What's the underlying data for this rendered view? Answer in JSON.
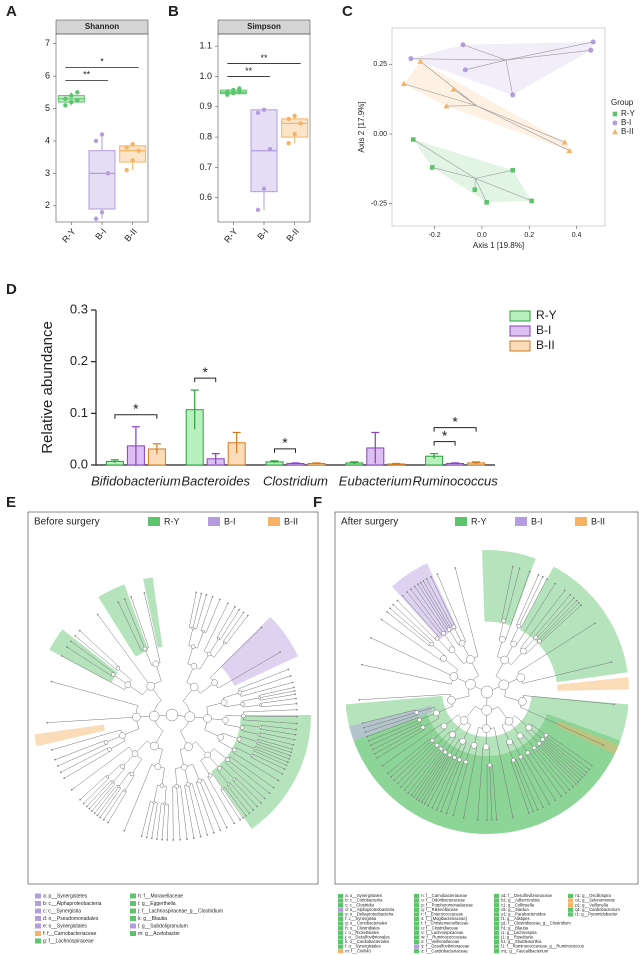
{
  "chart_data": [
    {
      "type": "box",
      "panel": "A",
      "title": "Shannon",
      "categories": [
        "R-Y",
        "B-I",
        "B-II"
      ],
      "colors": [
        "#5cc46b",
        "#b39ddf",
        "#f7b263"
      ],
      "ylim": [
        1.5,
        7.3
      ],
      "yticks": [
        2,
        3,
        4,
        5,
        6,
        7
      ],
      "boxes": [
        {
          "whislo": 5.1,
          "q1": 5.2,
          "med": 5.3,
          "q3": 5.4,
          "whishi": 5.5,
          "points": [
            5.1,
            5.2,
            5.25,
            5.3,
            5.4,
            5.5
          ]
        },
        {
          "whislo": 1.6,
          "q1": 1.9,
          "med": 3.0,
          "q3": 3.7,
          "whishi": 4.2,
          "points": [
            1.6,
            1.8,
            3.0,
            4.0,
            4.2
          ]
        },
        {
          "whislo": 3.1,
          "q1": 3.35,
          "med": 3.7,
          "q3": 3.85,
          "whishi": 3.9,
          "points": [
            3.1,
            3.4,
            3.7,
            3.8,
            3.9
          ]
        }
      ],
      "annotations": [
        {
          "text": "**",
          "from": 0,
          "to": 1
        },
        {
          "text": "*",
          "from": 0,
          "to": 2
        }
      ]
    },
    {
      "type": "box",
      "panel": "B",
      "title": "Simpson",
      "categories": [
        "R-Y",
        "B-I",
        "B-II"
      ],
      "colors": [
        "#5cc46b",
        "#b39ddf",
        "#f7b263"
      ],
      "ylim": [
        0.52,
        1.14
      ],
      "yticks": [
        0.6,
        0.7,
        0.8,
        0.9,
        {
          "value": 1,
          "label": "1.0"
        },
        1.1
      ],
      "boxes": [
        {
          "whislo": 0.94,
          "q1": 0.943,
          "med": 0.948,
          "q3": 0.955,
          "whishi": 0.96,
          "points": [
            0.94,
            0.945,
            0.948,
            0.95,
            0.955,
            0.96
          ]
        },
        {
          "whislo": 0.56,
          "q1": 0.62,
          "med": 0.755,
          "q3": 0.89,
          "whishi": 0.89,
          "points": [
            0.56,
            0.63,
            0.76,
            0.88,
            0.89
          ]
        },
        {
          "whislo": 0.78,
          "q1": 0.8,
          "med": 0.845,
          "q3": 0.86,
          "whishi": 0.87,
          "points": [
            0.78,
            0.81,
            0.845,
            0.86,
            0.87
          ]
        }
      ],
      "annotations": [
        {
          "text": "**",
          "from": 0,
          "to": 1
        },
        {
          "text": "**",
          "from": 0,
          "to": 2
        }
      ]
    },
    {
      "type": "scatter",
      "panel": "C",
      "xlabel": "Axis 1 [19.8%]",
      "ylabel": "Axis 2 [17.9%]",
      "legend_title": "Group",
      "xlim": [
        -0.38,
        0.52
      ],
      "ylim": [
        -0.33,
        0.38
      ],
      "xticks": [
        -0.2,
        {
          "value": 0,
          "label": "0.0"
        },
        0.2,
        0.4
      ],
      "yticks": [
        -0.25,
        {
          "value": 0,
          "label": "0.00"
        },
        0.25
      ],
      "series": [
        {
          "name": "R-Y",
          "color": "#5cc46b",
          "marker": "square",
          "x": [
            -0.29,
            -0.21,
            0.13,
            0.21,
            0.02,
            -0.03
          ],
          "y": [
            -0.02,
            -0.12,
            -0.13,
            -0.24,
            -0.245,
            -0.2
          ]
        },
        {
          "name": "B-I",
          "color": "#b39ddf",
          "marker": "circle",
          "x": [
            -0.08,
            0.47,
            0.46,
            -0.3,
            -0.07,
            0.13
          ],
          "y": [
            0.32,
            0.33,
            0.3,
            0.27,
            0.23,
            0.14
          ]
        },
        {
          "name": "B-II",
          "color": "#f7b263",
          "marker": "triangle",
          "x": [
            -0.33,
            -0.26,
            -0.12,
            -0.15,
            0.35,
            0.37
          ],
          "y": [
            0.18,
            0.26,
            0.16,
            0.1,
            -0.03,
            -0.06
          ]
        }
      ]
    },
    {
      "type": "bar",
      "panel": "D",
      "ylabel": "Relative abundance",
      "categories": [
        "Bifidobacterium",
        "Bacteroides",
        "Clostridium",
        "Eubacterium",
        "Ruminococcus"
      ],
      "ylim": [
        0,
        0.3
      ],
      "yticks": [
        {
          "value": 0,
          "label": "0.0"
        },
        0.1,
        0.2,
        0.3
      ],
      "series": [
        {
          "name": "R-Y",
          "color": "#b8f0be",
          "edgecolor": "#2e9e3e",
          "values": [
            0.007,
            0.107,
            0.006,
            0.004,
            0.017
          ],
          "errors": [
            0.003,
            0.038,
            0.002,
            0.002,
            0.005
          ]
        },
        {
          "name": "B-I",
          "color": "#dcc0f2",
          "edgecolor": "#8a3fc0",
          "values": [
            0.037,
            0.012,
            0.003,
            0.033,
            0.003
          ],
          "errors": [
            0.037,
            0.01,
            0.001,
            0.03,
            0.001
          ]
        },
        {
          "name": "B-II",
          "color": "#fbdcb8",
          "edgecolor": "#d07a20",
          "values": [
            0.031,
            0.043,
            0.003,
            0.002,
            0.004
          ],
          "errors": [
            0.01,
            0.02,
            0.001,
            0.001,
            0.002
          ]
        }
      ],
      "annotations": [
        {
          "category": 0,
          "text": "*",
          "from": 0,
          "to": 2
        },
        {
          "category": 1,
          "text": "*",
          "from": 0,
          "to": 1
        },
        {
          "category": 2,
          "text": "*",
          "from": 0,
          "to": 1
        },
        {
          "category": 4,
          "text": "*",
          "from": 0,
          "to": 1
        },
        {
          "category": 4,
          "text": "*",
          "from": 0,
          "to": 2
        }
      ]
    }
  ],
  "cladograms": [
    {
      "panel": "E",
      "title": "Before surgery",
      "legend": [
        "R-Y",
        "B-I",
        "B-II"
      ],
      "colors": [
        "#5cc46b",
        "#b39ddf",
        "#f7b263"
      ],
      "key": [
        {
          "text": "a: p__Synergistetes",
          "color": "#b39ddf"
        },
        {
          "text": "b: c__Alphaproteobacteria",
          "color": "#b39ddf"
        },
        {
          "text": "c: c__Synergistia",
          "color": "#b39ddf"
        },
        {
          "text": "d: o__Pseudomonadales",
          "color": "#b39ddf"
        },
        {
          "text": "e: o__Synergistales",
          "color": "#b39ddf"
        },
        {
          "text": "f: f__Carnobacteriaceae",
          "color": "#f7b263"
        },
        {
          "text": "g: f__Lachnospiraceae",
          "color": "#5cc46b"
        },
        {
          "text": "h: f__Moraxellaceae",
          "color": "#5cc46b"
        },
        {
          "text": "i: g__Eggerthella",
          "color": "#5cc46b"
        },
        {
          "text": "j: f__Lachnospiraceae_g__Clostridium",
          "color": "#5cc46b"
        },
        {
          "text": "k: g__Blautia",
          "color": "#5cc46b"
        },
        {
          "text": "l: g__Subdoligranulum",
          "color": "#b39ddf"
        },
        {
          "text": "m: g__Acetobacter",
          "color": "#5cc46b"
        }
      ]
    },
    {
      "panel": "F",
      "title": "After surgery",
      "legend": [
        "R-Y",
        "B-I",
        "B-II"
      ],
      "colors": [
        "#5cc46b",
        "#b39ddf",
        "#f7b263"
      ],
      "key": [
        {
          "text": "a: o__Synergistales",
          "color": "#5cc46b"
        },
        {
          "text": "b: c__Coriobacteriia",
          "color": "#5cc46b"
        },
        {
          "text": "c: c__Clostridia",
          "color": "#5cc46b"
        },
        {
          "text": "d: o__Alphaproteobacteria",
          "color": "#b39ddf"
        },
        {
          "text": "e: o__Deltaproteobacteria",
          "color": "#5cc46b"
        },
        {
          "text": "f: c__Synergistia",
          "color": "#5cc46b"
        },
        {
          "text": "g: o__Coriobacteriales",
          "color": "#5cc46b"
        },
        {
          "text": "h: o__Clostridiales",
          "color": "#5cc46b"
        },
        {
          "text": "i: o__Rickettsiales",
          "color": "#5cc46b"
        },
        {
          "text": "j: o__Desulfovibrionales",
          "color": "#5cc46b"
        },
        {
          "text": "k: o__Cardiobacteriales",
          "color": "#5cc46b"
        },
        {
          "text": "l: o__Synergistales",
          "color": "#5cc46b"
        },
        {
          "text": "m: f__CW040",
          "color": "#f7b263"
        },
        {
          "text": "n: f__Carnobacteriaceae",
          "color": "#5cc46b"
        },
        {
          "text": "o: f__Odoribacteraceae",
          "color": "#5cc46b"
        },
        {
          "text": "p: f__Porphyromonadaceae",
          "color": "#5cc46b"
        },
        {
          "text": "q: f__Rikenellaceae",
          "color": "#5cc46b"
        },
        {
          "text": "r: f__Enterococcaceae",
          "color": "#5cc46b"
        },
        {
          "text": "s: f__[Mogibacteriaceae]",
          "color": "#5cc46b"
        },
        {
          "text": "t: f__Christensenellaceae",
          "color": "#5cc46b"
        },
        {
          "text": "u: f__Clostridiaceae",
          "color": "#5cc46b"
        },
        {
          "text": "v: f__Lachnospiraceae",
          "color": "#5cc46b"
        },
        {
          "text": "w: f__Ruminococcaceae",
          "color": "#5cc46b"
        },
        {
          "text": "x: f__Veillonellaceae",
          "color": "#5cc46b"
        },
        {
          "text": "y: f__Desulfovibrionaceae",
          "color": "#b39ddf"
        },
        {
          "text": "z: f__Cardiobacteriaceae",
          "color": "#5cc46b"
        },
        {
          "text": "a1: f__Desulfovibrionaceae",
          "color": "#5cc46b"
        },
        {
          "text": "b1: g__Adlercreutzia",
          "color": "#5cc46b"
        },
        {
          "text": "c1: g__Collinsella",
          "color": "#5cc46b"
        },
        {
          "text": "d1: g__Slackia",
          "color": "#5cc46b"
        },
        {
          "text": "e1: g__Parabacteroides",
          "color": "#5cc46b"
        },
        {
          "text": "f1: g__Alistipes",
          "color": "#5cc46b"
        },
        {
          "text": "g1: f__Clostridiaceae_g__Clostridium",
          "color": "#5cc46b"
        },
        {
          "text": "h1: g__Blautia",
          "color": "#5cc46b"
        },
        {
          "text": "i1: g__Lachnospira",
          "color": "#5cc46b"
        },
        {
          "text": "j1: g__Roseburia",
          "color": "#5cc46b"
        },
        {
          "text": "k1: g__Shuttleworthia",
          "color": "#5cc46b"
        },
        {
          "text": "l1: f__Ruminococcaceae_g__Ruminococcus",
          "color": "#5cc46b"
        },
        {
          "text": "m1: g__Faecalibacterium",
          "color": "#5cc46b"
        },
        {
          "text": "n1: g__Oscillospira",
          "color": "#5cc46b"
        },
        {
          "text": "o1: g__Selenomonas",
          "color": "#f7b263"
        },
        {
          "text": "p1: g__Veillonella",
          "color": "#f7b263"
        },
        {
          "text": "q1: g__Cardiobacterium",
          "color": "#5cc46b"
        },
        {
          "text": "r1: g__Pyramidobacter",
          "color": "#5cc46b"
        }
      ]
    }
  ]
}
